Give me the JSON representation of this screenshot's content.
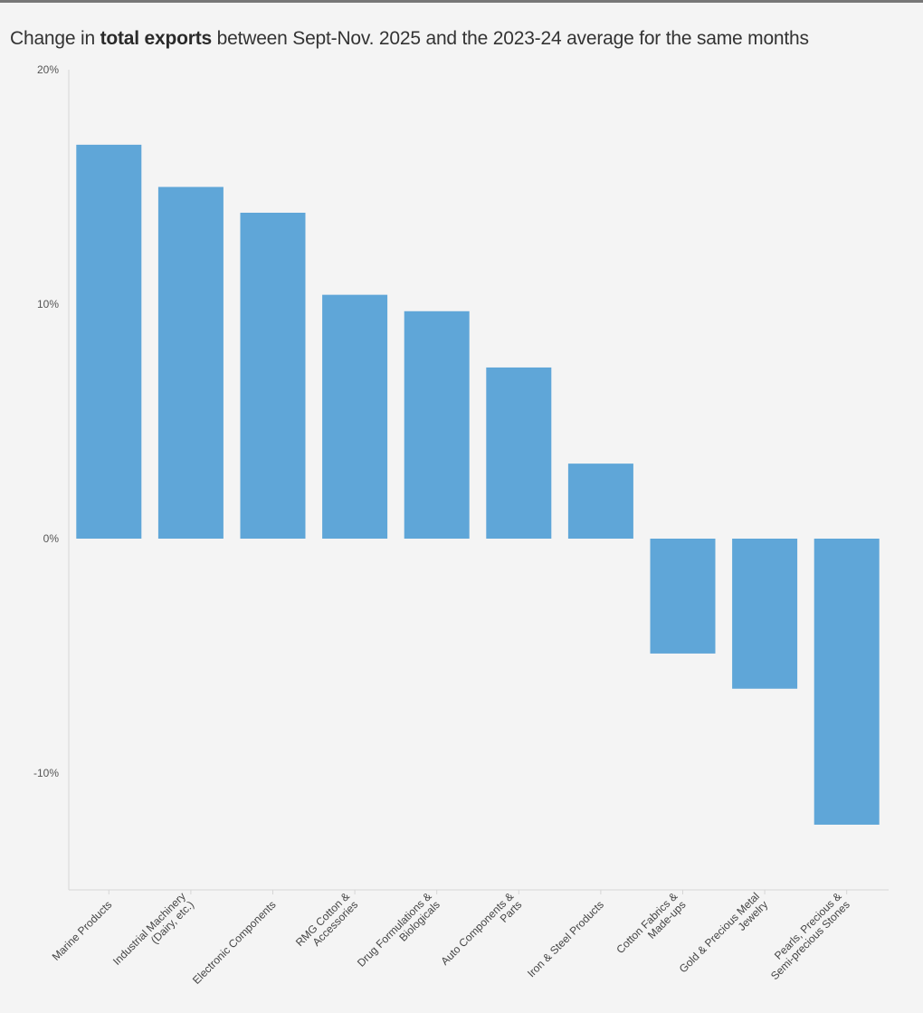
{
  "title": {
    "prefix": "Change in ",
    "bold": "total exports",
    "suffix": " between Sept-Nov. 2025 and the 2023-24 average for the same months"
  },
  "colors": {
    "bar": "#5fa6d8",
    "axis": "#d6d6d6",
    "background": "#f4f4f4"
  },
  "chart_data": {
    "type": "bar",
    "title": "Change in total exports between Sept-Nov. 2025 and the 2023-24 average for the same months",
    "xlabel": "",
    "ylabel": "",
    "ylim": [
      -15,
      20
    ],
    "yticks": [
      20,
      10,
      0,
      -10
    ],
    "ytick_labels": [
      "20%",
      "10%",
      "0%",
      "-10%"
    ],
    "grid": false,
    "categories": [
      [
        "Marine Products"
      ],
      [
        "Industrial Machinery",
        "(Dairy, etc.)"
      ],
      [
        "Electronic Components"
      ],
      [
        "RMG Cotton &",
        "Accessories"
      ],
      [
        "Drug Formulations &",
        "Biologicals"
      ],
      [
        "Auto Components &",
        "Parts"
      ],
      [
        "Iron & Steel Products"
      ],
      [
        "Cotton Fabrics &",
        "Made-ups"
      ],
      [
        "Gold & Precious Metal",
        "Jewelry"
      ],
      [
        "Pearls, Precious &",
        "Semi-precious Stones"
      ]
    ],
    "values": [
      16.8,
      15.0,
      13.9,
      10.4,
      9.7,
      7.3,
      3.2,
      -4.9,
      -6.4,
      -12.2
    ]
  }
}
